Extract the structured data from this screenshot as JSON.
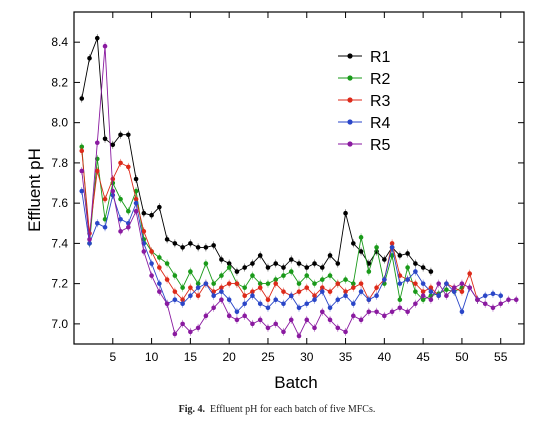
{
  "caption": {
    "label": "Fig. 4.",
    "text": "Effluent pH for each batch of five MFCs."
  },
  "chart_data": {
    "type": "line",
    "xlabel": "Batch",
    "ylabel": "Effluent pH",
    "xlim": [
      0,
      58
    ],
    "ylim": [
      6.9,
      8.55
    ],
    "xticks": [
      5,
      10,
      15,
      20,
      25,
      30,
      35,
      40,
      45,
      50,
      55
    ],
    "yticks": [
      7.0,
      7.2,
      7.4,
      7.6,
      7.8,
      8.0,
      8.2,
      8.4
    ],
    "grid": false,
    "legend_position": "top-right",
    "series": [
      {
        "name": "R1",
        "color": "#000000",
        "x": [
          1,
          2,
          3,
          4,
          5,
          6,
          7,
          8,
          9,
          10,
          11,
          12,
          13,
          14,
          15,
          16,
          17,
          18,
          19,
          20,
          21,
          22,
          23,
          24,
          25,
          26,
          27,
          28,
          29,
          30,
          31,
          32,
          33,
          34,
          35,
          36,
          37,
          38,
          39,
          40,
          41,
          42,
          43,
          44,
          45,
          46
        ],
        "values": [
          8.12,
          8.32,
          8.42,
          7.92,
          7.89,
          7.94,
          7.94,
          7.72,
          7.55,
          7.54,
          7.58,
          7.42,
          7.4,
          7.38,
          7.4,
          7.38,
          7.38,
          7.39,
          7.32,
          7.3,
          7.26,
          7.28,
          7.3,
          7.34,
          7.28,
          7.3,
          7.28,
          7.32,
          7.3,
          7.28,
          7.3,
          7.28,
          7.34,
          7.3,
          7.55,
          7.4,
          7.36,
          7.3,
          7.36,
          7.32,
          7.38,
          7.34,
          7.35,
          7.3,
          7.28,
          7.26
        ]
      },
      {
        "name": "R2",
        "color": "#1a9a1a",
        "x": [
          1,
          2,
          3,
          4,
          5,
          6,
          7,
          8,
          9,
          10,
          11,
          12,
          13,
          14,
          15,
          16,
          17,
          18,
          19,
          20,
          21,
          22,
          23,
          24,
          25,
          26,
          27,
          28,
          29,
          30,
          31,
          32,
          33,
          34,
          35,
          36,
          37,
          38,
          39,
          40,
          41,
          42,
          43,
          44,
          45,
          46,
          47,
          48,
          49,
          50
        ],
        "values": [
          7.88,
          7.4,
          7.82,
          7.52,
          7.7,
          7.62,
          7.56,
          7.66,
          7.42,
          7.36,
          7.33,
          7.3,
          7.24,
          7.18,
          7.26,
          7.2,
          7.3,
          7.2,
          7.24,
          7.28,
          7.2,
          7.18,
          7.24,
          7.2,
          7.2,
          7.22,
          7.24,
          7.26,
          7.2,
          7.24,
          7.2,
          7.22,
          7.24,
          7.2,
          7.22,
          7.2,
          7.43,
          7.26,
          7.38,
          7.2,
          7.34,
          7.12,
          7.28,
          7.16,
          7.12,
          7.14,
          7.15,
          7.17,
          7.16,
          7.18
        ]
      },
      {
        "name": "R3",
        "color": "#dd2a1a",
        "x": [
          1,
          2,
          3,
          4,
          5,
          6,
          7,
          8,
          9,
          10,
          11,
          12,
          13,
          14,
          15,
          16,
          17,
          18,
          19,
          20,
          21,
          22,
          23,
          24,
          25,
          26,
          27,
          28,
          29,
          30,
          31,
          32,
          33,
          34,
          35,
          36,
          37,
          38,
          39,
          40,
          41,
          42,
          43,
          44,
          45,
          46,
          47,
          48,
          49,
          50,
          51,
          52
        ],
        "values": [
          7.86,
          7.45,
          7.76,
          7.62,
          7.72,
          7.8,
          7.78,
          7.62,
          7.46,
          7.36,
          7.28,
          7.22,
          7.16,
          7.12,
          7.18,
          7.14,
          7.2,
          7.16,
          7.18,
          7.2,
          7.2,
          7.14,
          7.16,
          7.18,
          7.12,
          7.2,
          7.16,
          7.14,
          7.16,
          7.18,
          7.14,
          7.18,
          7.16,
          7.2,
          7.16,
          7.18,
          7.2,
          7.12,
          7.18,
          7.22,
          7.4,
          7.24,
          7.22,
          7.2,
          7.16,
          7.18,
          7.14,
          7.2,
          7.18,
          7.16,
          7.25,
          7.12
        ]
      },
      {
        "name": "R4",
        "color": "#2a46c8",
        "x": [
          1,
          2,
          3,
          4,
          5,
          6,
          7,
          8,
          9,
          10,
          11,
          12,
          13,
          14,
          15,
          16,
          17,
          18,
          19,
          20,
          21,
          22,
          23,
          24,
          25,
          26,
          27,
          28,
          29,
          30,
          31,
          32,
          33,
          34,
          35,
          36,
          37,
          38,
          39,
          40,
          41,
          42,
          43,
          44,
          45,
          46,
          47,
          48,
          49,
          50,
          51,
          52,
          53,
          54,
          55
        ],
        "values": [
          7.66,
          7.4,
          7.5,
          7.48,
          7.64,
          7.52,
          7.5,
          7.6,
          7.4,
          7.3,
          7.2,
          7.1,
          7.12,
          7.1,
          7.14,
          7.18,
          7.2,
          7.14,
          7.16,
          7.12,
          7.06,
          7.1,
          7.14,
          7.1,
          7.08,
          7.12,
          7.1,
          7.14,
          7.08,
          7.1,
          7.12,
          7.16,
          7.08,
          7.12,
          7.14,
          7.1,
          7.16,
          7.12,
          7.14,
          7.22,
          7.38,
          7.2,
          7.22,
          7.26,
          7.2,
          7.16,
          7.14,
          7.2,
          7.16,
          7.06,
          7.18,
          7.12,
          7.14,
          7.15,
          7.14
        ]
      },
      {
        "name": "R5",
        "color": "#8a1aa0",
        "x": [
          1,
          2,
          3,
          4,
          5,
          6,
          7,
          8,
          9,
          10,
          11,
          12,
          13,
          14,
          15,
          16,
          17,
          18,
          19,
          20,
          21,
          22,
          23,
          24,
          25,
          26,
          27,
          28,
          29,
          30,
          31,
          32,
          33,
          34,
          35,
          36,
          37,
          38,
          39,
          40,
          41,
          42,
          43,
          44,
          45,
          46,
          47,
          48,
          49,
          50,
          51,
          52,
          53,
          54,
          55,
          56,
          57
        ],
        "values": [
          7.76,
          7.42,
          7.9,
          8.38,
          7.66,
          7.46,
          7.48,
          7.56,
          7.36,
          7.24,
          7.16,
          7.1,
          6.95,
          7.0,
          6.96,
          6.98,
          7.04,
          7.08,
          7.12,
          7.04,
          7.02,
          7.04,
          7.0,
          7.02,
          6.98,
          7.0,
          6.96,
          7.02,
          6.94,
          7.02,
          6.98,
          7.06,
          7.02,
          6.98,
          6.96,
          7.04,
          7.02,
          7.06,
          7.06,
          7.04,
          7.06,
          7.08,
          7.06,
          7.1,
          7.14,
          7.12,
          7.2,
          7.14,
          7.18,
          7.2,
          7.18,
          7.12,
          7.1,
          7.08,
          7.1,
          7.12,
          7.12
        ]
      }
    ]
  }
}
